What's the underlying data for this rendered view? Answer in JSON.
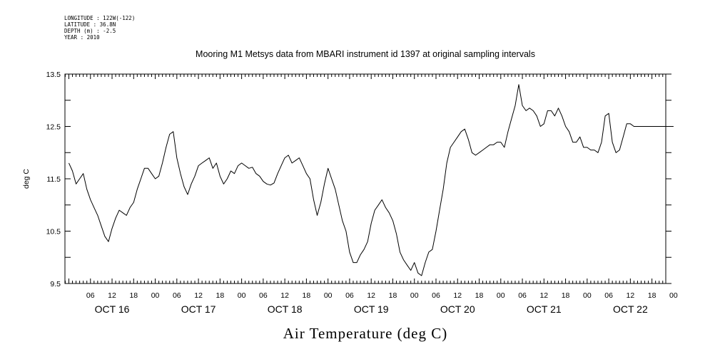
{
  "metadata": {
    "longitude": "LONGITUDE : 122W(-122)",
    "latitude": "LATITUDE : 36.8N",
    "depth": "DEPTH (m) : -2.5",
    "year": "YEAR : 2010"
  },
  "chart_data": {
    "type": "line",
    "title": "Mooring M1 Metsys data from MBARI instrument id 1397 at original sampling intervals",
    "xlabel": "Air Temperature (deg C)",
    "ylabel": "deg C",
    "ylim": [
      9.5,
      13.5
    ],
    "xlim_hours": [
      0,
      168
    ],
    "y_ticks": [
      "9.5",
      "10.5",
      "11.5",
      "12.5",
      "13.5"
    ],
    "x_hour_ticks": [
      "06",
      "12",
      "18",
      "00",
      "06",
      "12",
      "18",
      "00",
      "06",
      "12",
      "18",
      "00",
      "06",
      "12",
      "18",
      "00",
      "06",
      "12",
      "18",
      "00",
      "06",
      "12",
      "18",
      "00",
      "06",
      "12",
      "18",
      "00"
    ],
    "day_labels": [
      "OCT 16",
      "OCT 17",
      "OCT 18",
      "OCT 19",
      "OCT 20",
      "OCT 21",
      "OCT 22"
    ],
    "series": [
      {
        "x_hours": [
          0,
          1,
          2,
          3,
          4,
          5,
          6,
          7,
          8,
          9,
          10,
          11,
          12,
          13,
          14,
          15,
          16,
          17,
          18,
          19,
          20,
          21,
          22,
          23,
          24,
          25,
          26,
          27,
          28,
          29,
          30,
          31,
          32,
          33,
          34,
          35,
          36,
          37,
          38,
          39,
          40,
          41,
          42,
          43,
          44,
          45,
          46,
          47,
          48,
          49,
          50,
          51,
          52,
          53,
          54,
          55,
          56,
          57,
          58,
          59,
          60,
          61,
          62,
          63,
          64,
          65,
          66,
          67,
          68,
          69,
          70,
          71,
          72,
          73,
          74,
          75,
          76,
          77,
          78,
          79,
          80,
          81,
          82,
          83,
          84,
          85,
          86,
          87,
          88,
          89,
          90,
          91,
          92,
          93,
          94,
          95,
          96,
          97,
          98,
          99,
          100,
          101,
          102,
          103,
          104,
          105,
          106,
          107,
          108,
          109,
          110,
          111,
          112,
          113,
          114,
          115,
          116,
          117,
          118,
          119,
          120,
          121,
          122,
          123,
          124,
          125,
          126,
          127,
          128,
          129,
          130,
          131,
          132,
          133,
          134,
          135,
          136,
          137,
          138,
          139,
          140,
          141,
          142,
          143,
          144,
          145,
          146,
          147,
          148,
          149,
          150,
          151,
          152,
          153,
          154,
          155,
          156,
          157,
          158,
          159,
          160,
          161,
          162,
          163,
          164,
          165,
          166,
          167,
          168
        ],
        "values": [
          11.8,
          11.65,
          11.4,
          11.5,
          11.6,
          11.3,
          11.1,
          10.95,
          10.8,
          10.6,
          10.4,
          10.3,
          10.55,
          10.75,
          10.9,
          10.85,
          10.8,
          10.95,
          11.05,
          11.3,
          11.5,
          11.7,
          11.7,
          11.6,
          11.5,
          11.55,
          11.8,
          12.1,
          12.35,
          12.4,
          11.9,
          11.6,
          11.35,
          11.2,
          11.4,
          11.55,
          11.75,
          11.8,
          11.85,
          11.9,
          11.7,
          11.8,
          11.55,
          11.4,
          11.5,
          11.65,
          11.6,
          11.75,
          11.8,
          11.75,
          11.7,
          11.72,
          11.6,
          11.55,
          11.45,
          11.4,
          11.38,
          11.42,
          11.6,
          11.75,
          11.9,
          11.95,
          11.8,
          11.85,
          11.9,
          11.75,
          11.6,
          11.5,
          11.1,
          10.8,
          11.05,
          11.4,
          11.7,
          11.5,
          11.3,
          11.0,
          10.7,
          10.5,
          10.1,
          9.9,
          9.9,
          10.05,
          10.15,
          10.3,
          10.65,
          10.9,
          11.0,
          11.1,
          10.95,
          10.85,
          10.7,
          10.45,
          10.1,
          9.95,
          9.85,
          9.75,
          9.9,
          9.7,
          9.65,
          9.9,
          10.1,
          10.15,
          10.5,
          10.9,
          11.3,
          11.8,
          12.1,
          12.2,
          12.3,
          12.4,
          12.45,
          12.25,
          12.0,
          11.95,
          12.0,
          12.05,
          12.1,
          12.15,
          12.15,
          12.2,
          12.2,
          12.1,
          12.4,
          12.65,
          12.9,
          13.3,
          12.9,
          12.8,
          12.85,
          12.8,
          12.7,
          12.5,
          12.55,
          12.8,
          12.8,
          12.7,
          12.85,
          12.7,
          12.5,
          12.4,
          12.2,
          12.2,
          12.3,
          12.1,
          12.1,
          12.05,
          12.05,
          12.0,
          12.2,
          12.7,
          12.75,
          12.2,
          12.0,
          12.05,
          12.3,
          12.55,
          12.55,
          12.5,
          12.5,
          12.5,
          12.5,
          12.5,
          12.5,
          12.5,
          12.5,
          12.5,
          12.5,
          12.5,
          12.5
        ]
      }
    ]
  }
}
